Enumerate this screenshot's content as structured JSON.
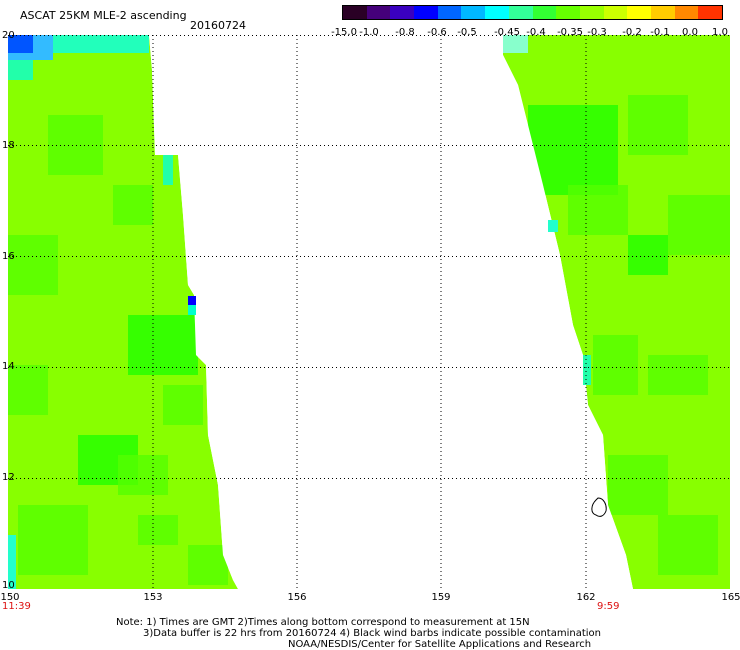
{
  "header": {
    "title": "ASCAT 25KM MLE-2 ascending",
    "date": "20160724"
  },
  "colorbar": {
    "colors": [
      "#2a0025",
      "#45007a",
      "#3a00c0",
      "#0000ff",
      "#0066ff",
      "#00b8ff",
      "#00ffff",
      "#33ff99",
      "#33ff33",
      "#66ff00",
      "#99ff00",
      "#ccff00",
      "#ffff00",
      "#ffcc00",
      "#ff8800",
      "#ff3300"
    ],
    "labels": [
      "-15.0",
      "-1.0",
      "-0.8",
      "-0.6",
      "-0.5",
      "-0.45",
      "-0.4",
      "-0.35",
      "-0.3",
      "-0.2",
      "-0.1",
      "0.0",
      "1.0"
    ]
  },
  "map": {
    "lat_labels": [
      "20",
      "18",
      "16",
      "14",
      "12",
      "10"
    ],
    "lon_labels": [
      "150",
      "153",
      "156",
      "159",
      "162",
      "165"
    ],
    "pass_times": [
      "11:39",
      "9:59"
    ],
    "colors": {
      "main": "#88ff00",
      "greener": "#55ff00",
      "deep": "#22ff00",
      "cyan": "#00ffcc",
      "blue": "#0000ff",
      "lightblue": "#33bbff"
    }
  },
  "notes": {
    "line1": "Note: 1) Times are GMT 2)Times along bottom correspond to measurement at 15N",
    "line2": "3)Data buffer is 22 hrs from 20160724 4) Black wind barbs indicate possible contamination",
    "line3": "NOAA/NESDIS/Center for Satellite Applications and Research"
  }
}
